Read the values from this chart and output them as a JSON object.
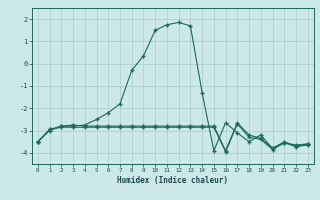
{
  "title": "",
  "xlabel": "Humidex (Indice chaleur)",
  "bg_color": "#cce8e8",
  "grid_color": "#aacccc",
  "line_color": "#1a6b5a",
  "xlim": [
    -0.5,
    23.5
  ],
  "ylim": [
    -4.5,
    2.5
  ],
  "yticks": [
    -4,
    -3,
    -2,
    -1,
    0,
    1,
    2
  ],
  "xticks": [
    0,
    1,
    2,
    3,
    4,
    5,
    6,
    7,
    8,
    9,
    10,
    11,
    12,
    13,
    14,
    15,
    16,
    17,
    18,
    19,
    20,
    21,
    22,
    23
  ],
  "curve1_x": [
    0,
    1,
    2,
    3,
    4,
    5,
    6,
    7,
    8,
    9,
    10,
    11,
    12,
    13,
    14,
    15,
    16,
    17,
    18,
    19,
    20,
    21,
    22,
    23
  ],
  "curve1_y": [
    -3.5,
    -3.0,
    -2.8,
    -2.8,
    -2.75,
    -2.5,
    -2.2,
    -1.8,
    -0.3,
    0.35,
    1.5,
    1.75,
    1.85,
    1.7,
    -1.3,
    -3.9,
    -2.65,
    -3.1,
    -3.5,
    -3.2,
    -3.8,
    -3.55,
    -3.65,
    -3.6
  ],
  "curve2_x": [
    0,
    1,
    2,
    3,
    4,
    5,
    6,
    7,
    8,
    9,
    10,
    11,
    12,
    13,
    14,
    15,
    16,
    17,
    18,
    19,
    20,
    21,
    22,
    23
  ],
  "curve2_y": [
    -3.5,
    -2.95,
    -2.8,
    -2.75,
    -2.8,
    -2.8,
    -2.8,
    -2.8,
    -2.8,
    -2.8,
    -2.8,
    -2.8,
    -2.8,
    -2.8,
    -2.8,
    -2.8,
    -3.9,
    -2.65,
    -3.2,
    -3.35,
    -3.8,
    -3.5,
    -3.7,
    -3.6
  ],
  "curve3_x": [
    0,
    1,
    2,
    3,
    4,
    5,
    6,
    7,
    8,
    9,
    10,
    11,
    12,
    13,
    14,
    15,
    16,
    17,
    18,
    19,
    20,
    21,
    22,
    23
  ],
  "curve3_y": [
    -3.5,
    -2.95,
    -2.85,
    -2.85,
    -2.85,
    -2.85,
    -2.85,
    -2.85,
    -2.85,
    -2.85,
    -2.85,
    -2.85,
    -2.85,
    -2.85,
    -2.85,
    -2.85,
    -3.95,
    -2.7,
    -3.3,
    -3.4,
    -3.85,
    -3.55,
    -3.72,
    -3.65
  ]
}
